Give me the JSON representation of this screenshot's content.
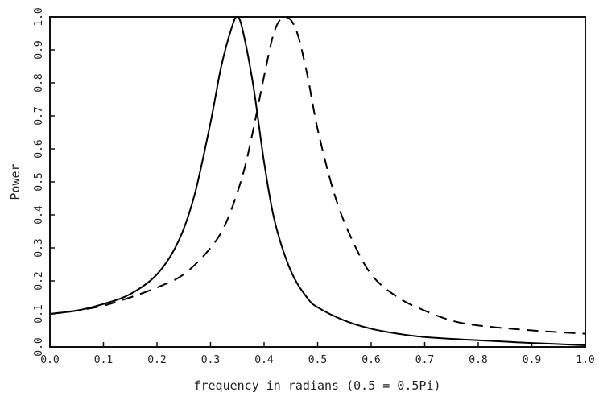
{
  "chart_data": {
    "type": "line",
    "title": "",
    "xlabel": "frequency in radians (0.5 = 0.5Pi)",
    "ylabel": "Power",
    "xlim": [
      0.0,
      1.0
    ],
    "ylim": [
      0.0,
      1.0
    ],
    "xticks": [
      "0.0",
      "0.1",
      "0.2",
      "0.3",
      "0.4",
      "0.5",
      "0.6",
      "0.7",
      "0.8",
      "0.9",
      "1.0"
    ],
    "yticks": [
      "0.0",
      "0.1",
      "0.2",
      "0.3",
      "0.4",
      "0.5",
      "0.6",
      "0.7",
      "0.8",
      "0.9",
      "1.0"
    ],
    "grid": false,
    "legend": "none",
    "series": [
      {
        "style": "solid",
        "color": "#000000",
        "x": [
          0.0,
          0.05,
          0.1,
          0.15,
          0.2,
          0.24,
          0.27,
          0.3,
          0.32,
          0.34,
          0.35,
          0.36,
          0.38,
          0.4,
          0.42,
          0.45,
          0.48,
          0.5,
          0.55,
          0.6,
          0.65,
          0.7,
          0.8,
          0.9,
          1.0
        ],
        "y": [
          0.1,
          0.11,
          0.13,
          0.16,
          0.22,
          0.32,
          0.46,
          0.68,
          0.85,
          0.97,
          1.0,
          0.96,
          0.79,
          0.56,
          0.38,
          0.23,
          0.15,
          0.12,
          0.08,
          0.055,
          0.04,
          0.03,
          0.02,
          0.012,
          0.005
        ]
      },
      {
        "style": "dashed",
        "color": "#000000",
        "x": [
          0.0,
          0.05,
          0.1,
          0.15,
          0.2,
          0.25,
          0.3,
          0.33,
          0.36,
          0.38,
          0.4,
          0.42,
          0.44,
          0.46,
          0.48,
          0.5,
          0.53,
          0.56,
          0.6,
          0.65,
          0.7,
          0.75,
          0.8,
          0.9,
          1.0
        ],
        "y": [
          0.1,
          0.11,
          0.125,
          0.15,
          0.18,
          0.22,
          0.3,
          0.38,
          0.52,
          0.66,
          0.82,
          0.96,
          1.0,
          0.96,
          0.83,
          0.66,
          0.47,
          0.34,
          0.22,
          0.15,
          0.11,
          0.08,
          0.065,
          0.05,
          0.04
        ]
      }
    ]
  }
}
